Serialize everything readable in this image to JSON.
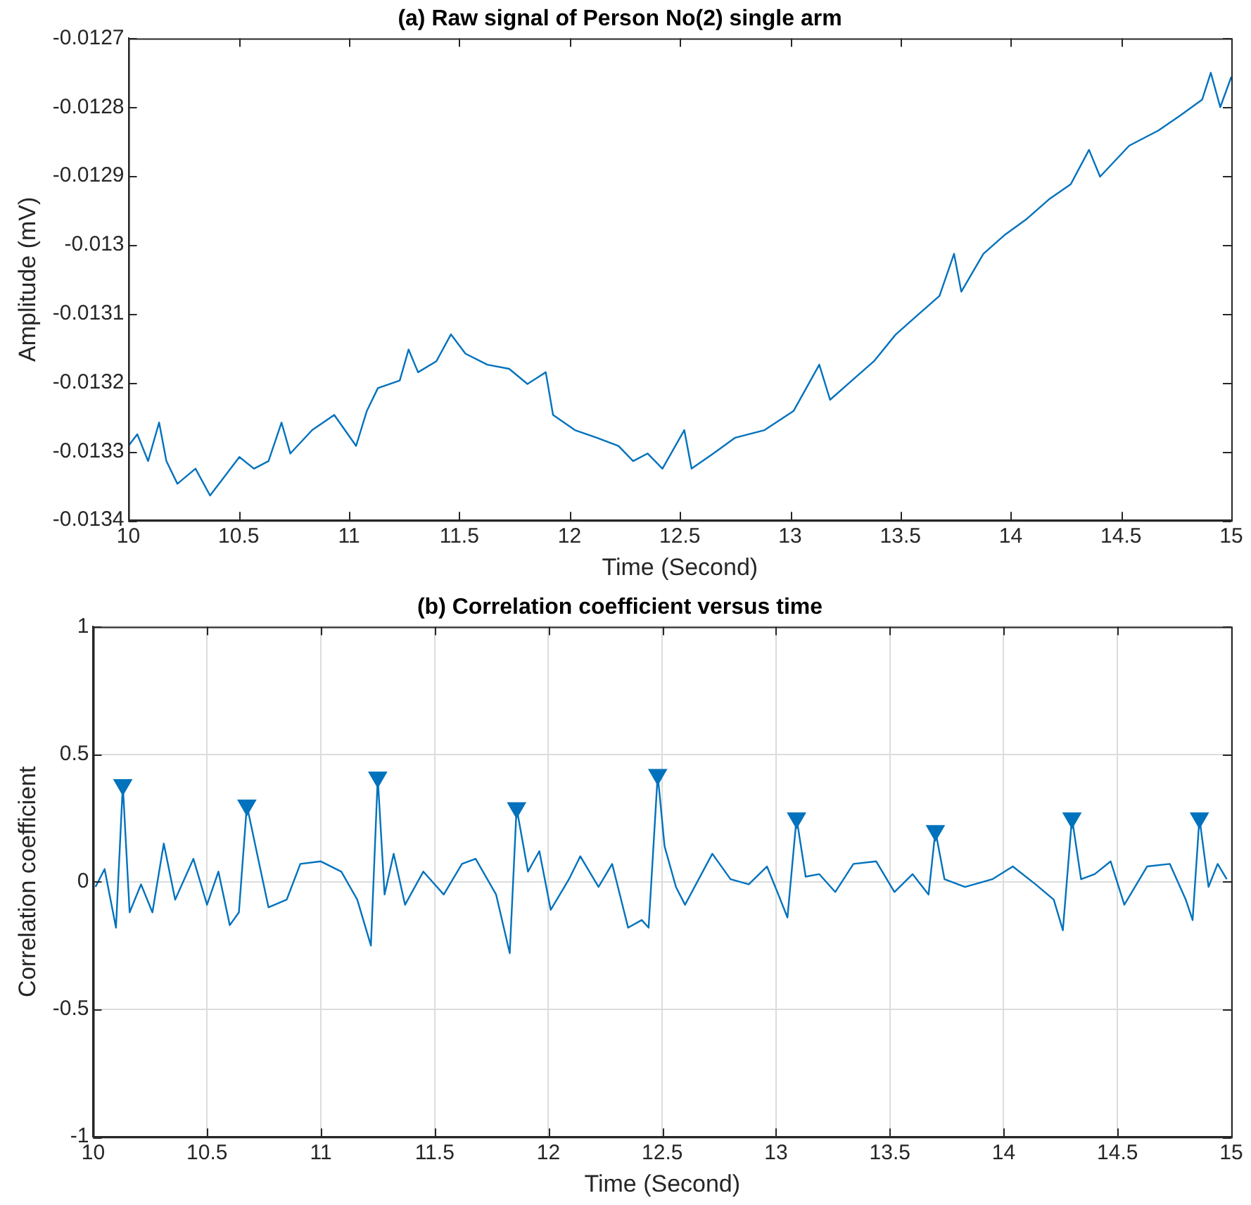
{
  "chart_data": [
    {
      "type": "line",
      "title": "(a) Raw signal of Person No(2) single arm",
      "xlabel": "Time (Second)",
      "ylabel": "Amplitude (mV)",
      "xlim": [
        10,
        15
      ],
      "xticks": [
        10,
        10.5,
        11,
        11.5,
        12,
        12.5,
        13,
        13.5,
        14,
        14.5,
        15
      ],
      "ylim": [
        -0.0134,
        -0.0127
      ],
      "yticks": [
        -0.0134,
        -0.0133,
        -0.0132,
        -0.0131,
        -0.013,
        -0.0129,
        -0.0128,
        -0.0127
      ],
      "grid": false,
      "marker": "none",
      "series": [
        {
          "color": "#0072bd",
          "x": [
            10,
            10.04,
            10.089,
            10.139,
            10.172,
            10.222,
            10.304,
            10.37,
            10.437,
            10.503,
            10.569,
            10.635,
            10.694,
            10.734,
            10.833,
            10.933,
            11.032,
            11.081,
            11.131,
            11.23,
            11.27,
            11.313,
            11.396,
            11.462,
            11.528,
            11.627,
            11.726,
            11.809,
            11.892,
            11.925,
            12.024,
            12.123,
            12.222,
            12.288,
            12.354,
            12.421,
            12.52,
            12.553,
            12.652,
            12.751,
            12.884,
            13.016,
            13.132,
            13.181,
            13.28,
            13.38,
            13.479,
            13.578,
            13.677,
            13.743,
            13.776,
            13.876,
            13.975,
            14.074,
            14.173,
            14.272,
            14.355,
            14.405,
            14.537,
            14.669,
            14.769,
            14.868,
            14.907,
            14.95,
            15
          ],
          "values": [
            -0.013292,
            -0.013275,
            -0.013314,
            -0.013258,
            -0.013314,
            -0.013347,
            -0.013325,
            -0.013364,
            -0.013336,
            -0.013308,
            -0.013325,
            -0.013314,
            -0.013258,
            -0.013303,
            -0.013269,
            -0.013247,
            -0.013292,
            -0.013241,
            -0.013208,
            -0.013197,
            -0.013152,
            -0.013185,
            -0.013169,
            -0.01313,
            -0.013158,
            -0.013174,
            -0.01318,
            -0.013202,
            -0.013185,
            -0.013247,
            -0.013269,
            -0.01328,
            -0.013292,
            -0.013314,
            -0.013303,
            -0.013325,
            -0.013269,
            -0.013325,
            -0.013303,
            -0.01328,
            -0.013269,
            -0.013241,
            -0.013174,
            -0.013225,
            -0.013197,
            -0.013169,
            -0.01313,
            -0.013102,
            -0.013074,
            -0.013013,
            -0.013068,
            -0.013013,
            -0.012985,
            -0.012962,
            -0.012934,
            -0.012912,
            -0.012862,
            -0.012901,
            -0.012856,
            -0.012834,
            -0.012812,
            -0.012789,
            -0.01275,
            -0.0128,
            -0.012756
          ]
        }
      ]
    },
    {
      "type": "line",
      "title": "(b) Correlation coefficient versus time",
      "xlabel": "Time (Second)",
      "ylabel": "Correlation coefficient",
      "xlim": [
        10,
        15
      ],
      "xticks": [
        10,
        10.5,
        11,
        11.5,
        12,
        12.5,
        13,
        13.5,
        14,
        14.5,
        15
      ],
      "ylim": [
        -1,
        1
      ],
      "yticks": [
        -1,
        -0.5,
        0,
        0.5,
        1
      ],
      "grid": true,
      "series": [
        {
          "type": "line",
          "marker": "none",
          "color": "#0072bd",
          "x": [
            10.01,
            10.05,
            10.1,
            10.13,
            10.16,
            10.21,
            10.26,
            10.31,
            10.36,
            10.44,
            10.5,
            10.55,
            10.6,
            10.64,
            10.675,
            10.72,
            10.77,
            10.85,
            10.91,
            11,
            11.09,
            11.16,
            11.22,
            11.25,
            11.28,
            11.32,
            11.37,
            11.45,
            11.54,
            11.62,
            11.68,
            11.77,
            11.83,
            11.86,
            11.91,
            11.96,
            12.01,
            12.09,
            12.14,
            12.22,
            12.28,
            12.35,
            12.41,
            12.44,
            12.48,
            12.51,
            12.56,
            12.6,
            12.72,
            12.8,
            12.88,
            12.96,
            13.01,
            13.05,
            13.09,
            13.13,
            13.19,
            13.26,
            13.34,
            13.44,
            13.52,
            13.6,
            13.67,
            13.7,
            13.74,
            13.83,
            13.95,
            14.04,
            14.14,
            14.22,
            14.26,
            14.3,
            14.34,
            14.4,
            14.47,
            14.53,
            14.63,
            14.73,
            14.8,
            14.83,
            14.86,
            14.9,
            14.94,
            14.98
          ],
          "values": [
            -0.02,
            0.05,
            -0.18,
            0.38,
            -0.12,
            -0.01,
            -0.12,
            0.15,
            -0.07,
            0.09,
            -0.09,
            0.04,
            -0.17,
            -0.12,
            0.3,
            0.11,
            -0.1,
            -0.07,
            0.07,
            0.08,
            0.04,
            -0.07,
            -0.25,
            0.41,
            -0.05,
            0.11,
            -0.09,
            0.04,
            -0.05,
            0.07,
            0.09,
            -0.05,
            -0.28,
            0.29,
            0.04,
            0.12,
            -0.11,
            0.01,
            0.1,
            -0.02,
            0.07,
            -0.18,
            -0.15,
            -0.18,
            0.42,
            0.14,
            -0.02,
            -0.09,
            0.11,
            0.01,
            -0.01,
            0.06,
            -0.05,
            -0.14,
            0.25,
            0.02,
            0.03,
            -0.04,
            0.07,
            0.08,
            -0.04,
            0.03,
            -0.05,
            0.2,
            0.01,
            -0.02,
            0.01,
            0.06,
            -0.01,
            -0.07,
            -0.19,
            0.25,
            0.01,
            0.03,
            0.08,
            -0.09,
            0.06,
            0.07,
            -0.07,
            -0.15,
            0.25,
            -0.02,
            0.07,
            0.01
          ]
        },
        {
          "type": "scatter",
          "marker": "triangle",
          "color": "#0072bd",
          "x": [
            10.13,
            10.675,
            11.25,
            11.86,
            12.48,
            13.09,
            13.7,
            14.3,
            14.86
          ],
          "values": [
            0.38,
            0.3,
            0.41,
            0.29,
            0.42,
            0.25,
            0.2,
            0.25,
            0.25
          ]
        }
      ]
    }
  ]
}
